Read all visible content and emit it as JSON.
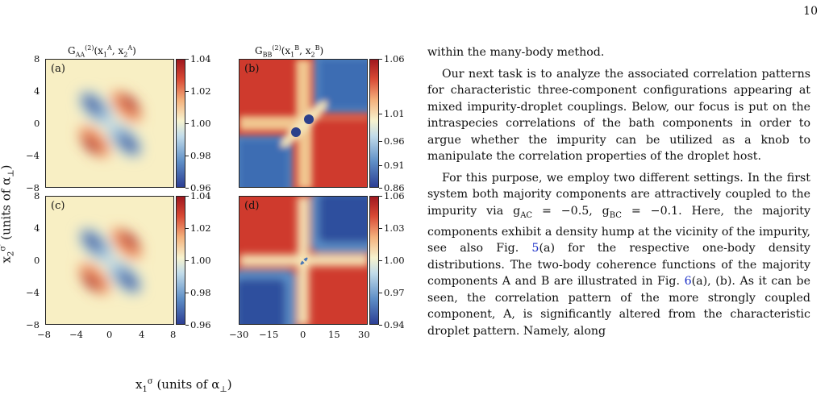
{
  "page_number": "10",
  "figure": {
    "y_axis_label": "x₂^σ′ (units of α⊥)",
    "x_axis_label": "x₁^σ (units of α⊥)",
    "panels": [
      {
        "letter": "(a)",
        "title": "G^(2)_AA(x^A_1, x^A_2)",
        "cbar_ticks": [
          "1.04",
          "1.02",
          "1.00",
          "0.98",
          "0.96"
        ]
      },
      {
        "letter": "(b)",
        "title": "G^(2)_BB(x^B_1, x^B_2)",
        "cbar_ticks": [
          "1.06",
          "1.01",
          "0.96",
          "0.91",
          "0.86"
        ]
      },
      {
        "letter": "(c)",
        "cbar_ticks": [
          "1.04",
          "1.02",
          "1.00",
          "0.98",
          "0.96"
        ]
      },
      {
        "letter": "(d)",
        "cbar_ticks": [
          "1.06",
          "1.03",
          "1.00",
          "0.97",
          "0.94"
        ]
      }
    ],
    "y_ticks": [
      "8",
      "4",
      "0",
      "−4",
      "−8"
    ],
    "x_ticks_left": [
      "−8",
      "−4",
      "0",
      "4",
      "8"
    ],
    "x_ticks_right": [
      "−30",
      "−15",
      "0",
      "15",
      "30"
    ]
  },
  "text": {
    "p1": "within the many-body method.",
    "p2": "Our next task is to analyze the associated correlation patterns for characteristic three-component configurations appearing at mixed impurity-droplet couplings. Below, our focus is put on the intraspecies correlations of the bath components in order to argue whether the impurity can be utilized as a knob to manipulate the correlation properties of the droplet host.",
    "p3a": "For this purpose, we employ two different settings. In the first system both majority components are attractively coupled to the impurity via g",
    "p3b": "AC",
    "p3c": " = −0.5, g",
    "p3d": "BC",
    "p3e": " = −0.1. Here, the majority components exhibit a density hump at the vicinity of the impurity, see also Fig. ",
    "p3f": "5",
    "p3g": "(a) for the respective one-body density distributions. The two-body coherence functions of the majority components A and B are illustrated in Fig. ",
    "p3h": "6",
    "p3i": "(a), (b). As it can be seen, the correlation pattern of the more strongly coupled component, A, is significantly altered from the characteristic droplet pattern. Namely, along"
  }
}
